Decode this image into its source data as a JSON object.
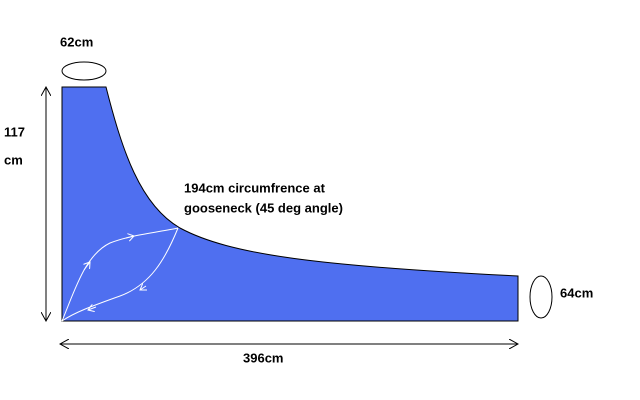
{
  "labels": {
    "top_circumference": "62cm",
    "height_value": "117",
    "height_unit": "cm",
    "gooseneck_line1": "194cm circumfrence at",
    "gooseneck_line2": "gooseneck (45 deg angle)",
    "end_circumference": "64cm",
    "length": "396cm"
  }
}
